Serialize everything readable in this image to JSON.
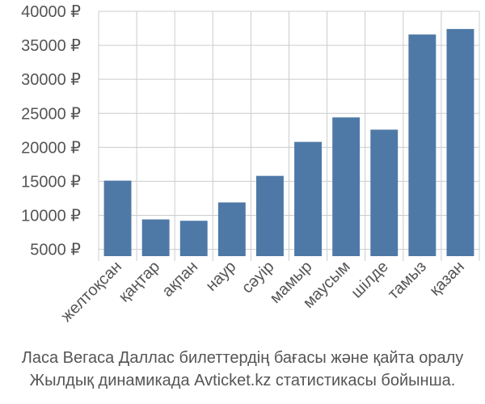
{
  "chart_data": {
    "type": "bar",
    "categories": [
      "желтоқсан",
      "қаңтар",
      "ақпан",
      "наур",
      "сәуір",
      "мамыр",
      "маусым",
      "шілде",
      "тамыз",
      "қазан"
    ],
    "values": [
      15100,
      9400,
      9200,
      11900,
      15800,
      20800,
      24400,
      22600,
      36600,
      37400
    ],
    "y_ticks": [
      5000,
      10000,
      15000,
      20000,
      25000,
      30000,
      35000,
      40000
    ],
    "y_tick_labels": [
      "5000 ₽",
      "10000 ₽",
      "15000 ₽",
      "20000 ₽",
      "25000 ₽",
      "30000 ₽",
      "35000 ₽",
      "40000 ₽"
    ],
    "ylim": [
      4000,
      40000
    ],
    "grid": true,
    "bar_color": "#4e79a7",
    "caption": [
      "Ласа Вегаса Даллас билеттердің бағасы және қайта оралу",
      "Жылдық динамикада Avticket.kz статистикасы бойынша."
    ]
  }
}
